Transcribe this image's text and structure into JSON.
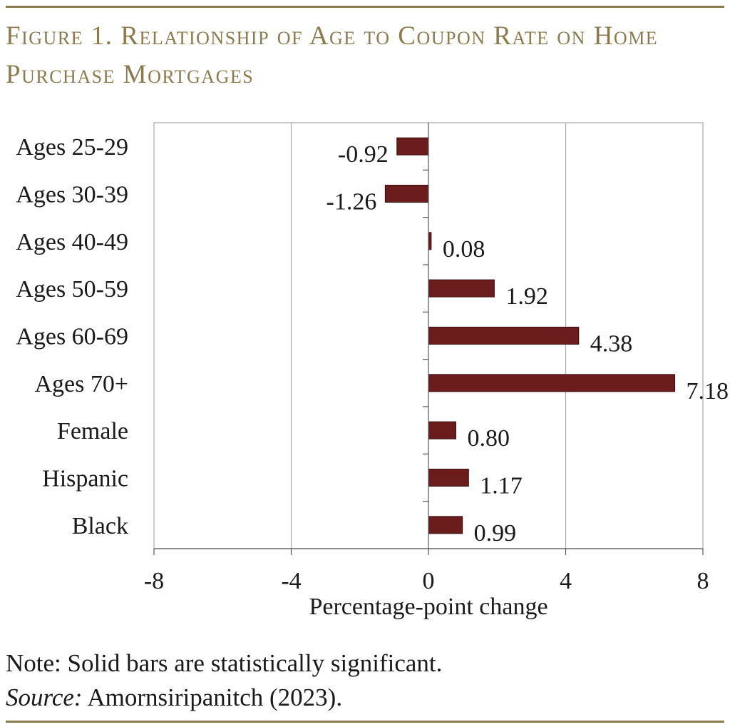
{
  "figure_title": "Figure 1. Relationship of Age to Coupon Rate on Home Purchase Mortgages",
  "note": "Note: Solid bars are statistically significant.",
  "source_label": "Source:",
  "source_text": " Amornsiripanitch (2023).",
  "colors": {
    "accent": "#8b7a4e",
    "bar": "#6b1c1c",
    "grid": "#a6a6a6"
  },
  "chart_data": {
    "type": "bar",
    "orientation": "horizontal",
    "categories": [
      "Ages 25-29",
      "Ages 30-39",
      "Ages 40-49",
      "Ages 50-59",
      "Ages 60-69",
      "Ages 70+",
      "Female",
      "Hispanic",
      "Black"
    ],
    "values": [
      -0.92,
      -1.26,
      0.08,
      1.92,
      4.38,
      7.18,
      0.8,
      1.17,
      0.99
    ],
    "value_labels": [
      "-0.92",
      "-1.26",
      "0.08",
      "1.92",
      "4.38",
      "7.18",
      "0.80",
      "1.17",
      "0.99"
    ],
    "xlabel": "Percentage-point change",
    "xlim": [
      -8,
      8
    ],
    "xticks": [
      -8,
      -4,
      0,
      4,
      8
    ],
    "xtick_labels": [
      "-8",
      "-4",
      "0",
      "4",
      "8"
    ],
    "grid": true,
    "legend": false
  }
}
